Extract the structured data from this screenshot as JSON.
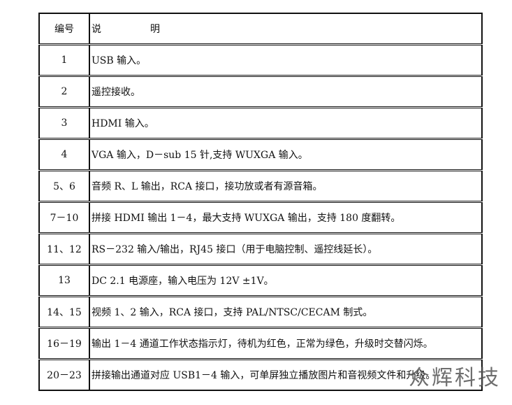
{
  "header": {
    "num": "编号",
    "desc_a": "说",
    "desc_b": "明"
  },
  "rows": [
    {
      "num": "1",
      "desc": "USB 输入。"
    },
    {
      "num": "2",
      "desc": "遥控接收。"
    },
    {
      "num": "3",
      "desc": "HDMI 输入。"
    },
    {
      "num": "4",
      "desc": "VGA 输入，D－sub 15 针,支持 WUXGA 输入。"
    },
    {
      "num": "5、6",
      "desc": "音频 R、L 输出，RCA 接口，接功放或者有源音箱。"
    },
    {
      "num": "7－10",
      "desc": "拼接 HDMI 输出 1－4，最大支持 WUXGA 输出，支持 180 度翻转。"
    },
    {
      "num": "11、12",
      "desc": "RS－232 输入/输出，RJ45 接口（用于电脑控制、遥控线延长）。"
    },
    {
      "num": "13",
      "desc": "DC 2.1 电源座，输入电压为 12V ±1V。"
    },
    {
      "num": "14、15",
      "desc": "视频 1、2 输入，RCA 接口，支持 PAL/NTSC/CECAM 制式。"
    },
    {
      "num": "16－19",
      "desc": "输出 1－4 通道工作状态指示灯，待机为红色，正常为绿色，升级时交替闪烁。"
    },
    {
      "num": "20－23",
      "desc": "拼接输出通道对应 USB1－4 输入，可单屏独立播放图片和音视频文件和升级。"
    }
  ],
  "watermark": "众辉科技"
}
